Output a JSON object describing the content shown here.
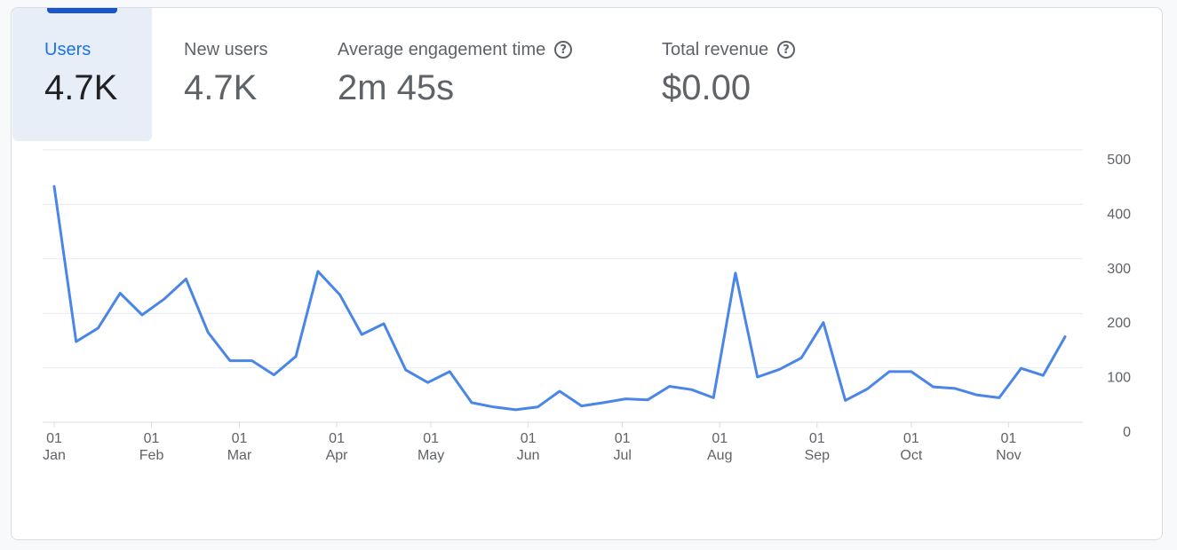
{
  "metrics": [
    {
      "label": "Users",
      "value": "4.7K",
      "active": true,
      "help": false
    },
    {
      "label": "New users",
      "value": "4.7K",
      "active": false,
      "help": false
    },
    {
      "label": "Average engagement time",
      "value": "2m 45s",
      "active": false,
      "help": true
    },
    {
      "label": "Total revenue",
      "value": "$0.00",
      "active": false,
      "help": true
    }
  ],
  "help_glyph": "?",
  "colors": {
    "line": "#4a86e8",
    "accent": "#1a73e8",
    "indicator": "#1a56c8",
    "active_tab": "#e8eef7"
  },
  "chart_data": {
    "type": "line",
    "ylim": [
      0,
      500
    ],
    "yticks": [
      0,
      100,
      200,
      300,
      400,
      500
    ],
    "axis_position": "right",
    "grid": true,
    "x_ticks": [
      {
        "day": "01",
        "month": "Jan"
      },
      {
        "day": "01",
        "month": "Feb"
      },
      {
        "day": "01",
        "month": "Mar"
      },
      {
        "day": "01",
        "month": "Apr"
      },
      {
        "day": "01",
        "month": "May"
      },
      {
        "day": "01",
        "month": "Jun"
      },
      {
        "day": "01",
        "month": "Jul"
      },
      {
        "day": "01",
        "month": "Aug"
      },
      {
        "day": "01",
        "month": "Sep"
      },
      {
        "day": "01",
        "month": "Oct"
      },
      {
        "day": "01",
        "month": "Nov"
      }
    ],
    "series": [
      {
        "x": [
          "2023-01-01",
          "2023-01-08",
          "2023-01-15",
          "2023-01-22",
          "2023-01-29",
          "2023-02-05",
          "2023-02-12",
          "2023-02-19",
          "2023-02-26",
          "2023-03-05",
          "2023-03-12",
          "2023-03-19",
          "2023-03-26",
          "2023-04-02",
          "2023-04-09",
          "2023-04-16",
          "2023-04-23",
          "2023-04-30",
          "2023-05-07",
          "2023-05-14",
          "2023-05-21",
          "2023-05-28",
          "2023-06-04",
          "2023-06-11",
          "2023-06-18",
          "2023-06-25",
          "2023-07-02",
          "2023-07-09",
          "2023-07-16",
          "2023-07-23",
          "2023-07-30",
          "2023-08-06",
          "2023-08-13",
          "2023-08-20",
          "2023-08-27",
          "2023-09-03",
          "2023-09-10",
          "2023-09-17",
          "2023-09-24",
          "2023-10-01",
          "2023-10-08",
          "2023-10-15",
          "2023-10-22",
          "2023-10-29",
          "2023-11-05",
          "2023-11-12",
          "2023-11-19"
        ],
        "values": [
          433,
          148,
          173,
          237,
          197,
          226,
          263,
          165,
          113,
          113,
          87,
          121,
          277,
          234,
          161,
          181,
          96,
          73,
          93,
          36,
          28,
          23,
          28,
          57,
          30,
          36,
          43,
          41,
          66,
          60,
          45,
          274,
          83,
          97,
          118,
          183,
          40,
          61,
          93,
          93,
          65,
          62,
          50,
          45,
          99,
          86,
          157
        ]
      }
    ]
  }
}
